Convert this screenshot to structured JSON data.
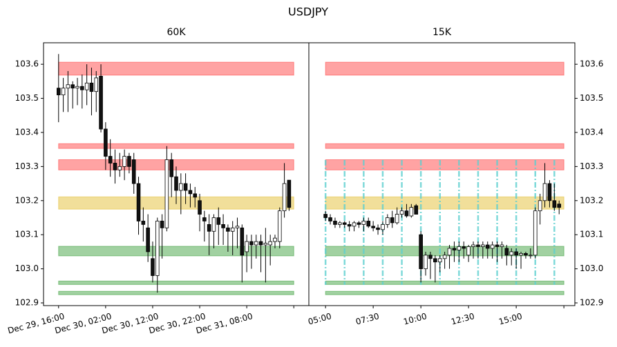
{
  "title": "USDJPY",
  "chart_data": [
    {
      "type": "candlestick",
      "title": "60K",
      "y_axis_side": "left",
      "open": [
        103.53,
        103.51,
        103.53,
        103.54,
        103.53,
        103.535,
        103.525,
        103.545,
        103.52,
        103.565,
        103.41,
        103.33,
        103.31,
        103.29,
        103.3,
        103.33,
        103.32,
        103.25,
        103.14,
        103.12,
        103.03,
        102.98,
        103.14,
        103.12,
        103.32,
        103.27,
        103.23,
        103.25,
        103.23,
        103.22,
        103.2,
        103.15,
        103.13,
        103.11,
        103.15,
        103.13,
        103.12,
        103.11,
        103.12,
        103.12,
        103.05,
        103.08,
        103.07,
        103.08,
        103.07,
        103.07,
        103.08,
        103.08,
        103.17,
        103.26
      ],
      "high": [
        103.63,
        103.56,
        103.58,
        103.55,
        103.56,
        103.57,
        103.6,
        103.59,
        103.58,
        103.6,
        103.43,
        103.38,
        103.35,
        103.34,
        103.35,
        103.34,
        103.34,
        103.27,
        103.18,
        103.16,
        103.08,
        103.15,
        103.16,
        103.36,
        103.34,
        103.3,
        103.28,
        103.28,
        103.25,
        103.24,
        103.22,
        103.17,
        103.16,
        103.16,
        103.18,
        103.16,
        103.13,
        103.14,
        103.15,
        103.13,
        103.1,
        103.1,
        103.1,
        103.1,
        103.12,
        103.1,
        103.1,
        103.18,
        103.31,
        103.26
      ],
      "low": [
        103.43,
        103.46,
        103.46,
        103.47,
        103.48,
        103.47,
        103.48,
        103.45,
        103.46,
        103.4,
        103.29,
        103.27,
        103.25,
        103.27,
        103.26,
        103.28,
        103.22,
        103.1,
        103.08,
        103.02,
        102.96,
        102.93,
        103.03,
        103.11,
        103.21,
        103.19,
        103.16,
        103.19,
        103.18,
        103.18,
        103.11,
        103.08,
        103.04,
        103.06,
        103.07,
        103.07,
        103.05,
        103.04,
        103.06,
        102.96,
        102.99,
        103.0,
        103.03,
        102.99,
        102.96,
        103.01,
        103.06,
        103.06,
        103.15,
        103.17
      ],
      "close": [
        103.51,
        103.53,
        103.54,
        103.53,
        103.535,
        103.525,
        103.545,
        103.52,
        103.56,
        103.41,
        103.33,
        103.31,
        103.29,
        103.3,
        103.33,
        103.3,
        103.25,
        103.14,
        103.13,
        103.05,
        102.98,
        103.14,
        103.12,
        103.32,
        103.27,
        103.23,
        103.25,
        103.23,
        103.22,
        103.21,
        103.16,
        103.14,
        103.11,
        103.15,
        103.13,
        103.12,
        103.11,
        103.12,
        103.125,
        103.04,
        103.08,
        103.07,
        103.08,
        103.07,
        103.075,
        103.08,
        103.09,
        103.17,
        103.25,
        103.18
      ],
      "xlim": [
        -3.2,
        53.2
      ],
      "xticks": [
        {
          "value": 0,
          "label": "Dec 29, 16:00"
        },
        {
          "value": 10,
          "label": "Dec 30, 02:00"
        },
        {
          "value": 20,
          "label": "Dec 30, 12:00"
        },
        {
          "value": 30,
          "label": "Dec 30, 22:00"
        },
        {
          "value": 40,
          "label": "Dec 31, 08:00"
        },
        {
          "value": 50,
          "label": null
        }
      ],
      "ylim": [
        102.892,
        103.663
      ],
      "yticks": [
        102.9,
        {
          "value": 103,
          "label": "103.0"
        },
        103.1,
        103.2,
        103.3,
        103.4,
        103.5,
        103.6
      ],
      "zones": [
        {
          "low": 103.568,
          "high": 103.606,
          "color": "#ff3333"
        },
        {
          "low": 103.353,
          "high": 103.367,
          "color": "#ff3333"
        },
        {
          "low": 103.29,
          "high": 103.32,
          "color": "#ff3333"
        },
        {
          "low": 103.175,
          "high": 103.211,
          "color": "#e0b820"
        },
        {
          "low": 103.038,
          "high": 103.066,
          "color": "#2e9a2e"
        },
        {
          "low": 102.954,
          "high": 102.964,
          "color": "#2e9a2e"
        },
        {
          "low": 102.924,
          "high": 102.934,
          "color": "#2e9a2e"
        }
      ]
    },
    {
      "type": "candlestick",
      "title": "15K",
      "y_axis_side": "right",
      "open": [
        103.16,
        103.15,
        103.14,
        103.13,
        103.135,
        103.13,
        103.125,
        103.135,
        103.13,
        103.14,
        103.125,
        103.12,
        103.115,
        103.13,
        103.15,
        103.135,
        103.16,
        103.17,
        103.155,
        103.185,
        103.1,
        103.0,
        103.04,
        103.03,
        103.02,
        103.03,
        103.04,
        103.06,
        103.055,
        103.065,
        103.04,
        103.065,
        103.07,
        103.065,
        103.07,
        103.06,
        103.07,
        103.065,
        103.06,
        103.04,
        103.05,
        103.04,
        103.045,
        103.04,
        103.04,
        103.17,
        103.2,
        103.25,
        103.2,
        103.19
      ],
      "high": [
        103.17,
        103.16,
        103.15,
        103.14,
        103.14,
        103.14,
        103.14,
        103.14,
        103.15,
        103.15,
        103.14,
        103.13,
        103.14,
        103.16,
        103.17,
        103.18,
        103.18,
        103.19,
        103.19,
        103.19,
        103.11,
        103.05,
        103.05,
        103.04,
        103.04,
        103.05,
        103.07,
        103.08,
        103.08,
        103.08,
        103.07,
        103.08,
        103.08,
        103.08,
        103.08,
        103.08,
        103.08,
        103.08,
        103.07,
        103.06,
        103.06,
        103.05,
        103.05,
        103.06,
        103.18,
        103.22,
        103.31,
        103.26,
        103.25,
        103.2
      ],
      "low": [
        103.14,
        103.13,
        103.12,
        103.12,
        103.12,
        103.11,
        103.11,
        103.12,
        103.11,
        103.12,
        103.11,
        103.1,
        103.1,
        103.12,
        103.12,
        103.13,
        103.15,
        103.15,
        103.15,
        103.16,
        102.96,
        102.98,
        102.97,
        102.96,
        102.99,
        103.0,
        103.0,
        103.02,
        103.02,
        103.03,
        103.02,
        103.03,
        103.03,
        103.03,
        103.03,
        103.03,
        103.02,
        103.03,
        103.01,
        103.01,
        103.0,
        103.0,
        103.03,
        103.03,
        103.03,
        103.13,
        103.18,
        103.18,
        103.17,
        103.16
      ],
      "close": [
        103.15,
        103.14,
        103.13,
        103.135,
        103.13,
        103.125,
        103.135,
        103.13,
        103.14,
        103.125,
        103.12,
        103.115,
        103.13,
        103.15,
        103.135,
        103.16,
        103.17,
        103.155,
        103.18,
        103.16,
        103.0,
        103.04,
        103.03,
        103.02,
        103.03,
        103.04,
        103.06,
        103.055,
        103.065,
        103.06,
        103.065,
        103.07,
        103.065,
        103.07,
        103.06,
        103.07,
        103.065,
        103.07,
        103.04,
        103.05,
        103.04,
        103.045,
        103.04,
        103.04,
        103.17,
        103.2,
        103.25,
        103.2,
        103.18,
        103.18
      ],
      "xlim": [
        -3.5,
        52.3
      ],
      "xticks": [
        {
          "value": 0,
          "label": "05:00"
        },
        {
          "value": 10,
          "label": "07:30"
        },
        {
          "value": 20,
          "label": "10:00"
        },
        {
          "value": 30,
          "label": "12:30"
        },
        {
          "value": 40,
          "label": "15:00"
        },
        {
          "value": 50,
          "label": null
        }
      ],
      "ylim": [
        102.892,
        103.663
      ],
      "yticks": [
        102.9,
        {
          "value": 103,
          "label": "103.0"
        },
        103.1,
        103.2,
        103.3,
        103.4,
        103.5,
        103.6
      ],
      "vlines": [
        0,
        4,
        8,
        12,
        16,
        20,
        24,
        28,
        32,
        36,
        40,
        44,
        48
      ],
      "vline_color": "#5fd0d0",
      "zones": [
        {
          "low": 103.568,
          "high": 103.606,
          "color": "#ff3333"
        },
        {
          "low": 103.353,
          "high": 103.367,
          "color": "#ff3333"
        },
        {
          "low": 103.29,
          "high": 103.32,
          "color": "#ff3333"
        },
        {
          "low": 103.175,
          "high": 103.211,
          "color": "#e0b820"
        },
        {
          "low": 103.038,
          "high": 103.066,
          "color": "#2e9a2e"
        },
        {
          "low": 102.954,
          "high": 102.964,
          "color": "#2e9a2e"
        },
        {
          "low": 102.924,
          "high": 102.934,
          "color": "#2e9a2e"
        }
      ]
    }
  ]
}
